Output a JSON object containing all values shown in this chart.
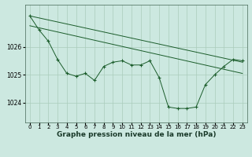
{
  "bg_color": "#cce8e0",
  "grid_color": "#aaccbb",
  "line_color": "#1a5c2a",
  "xlabel": "Graphe pression niveau de la mer (hPa)",
  "xlabel_fontsize": 6.5,
  "xtick_fontsize": 5.0,
  "ytick_fontsize": 5.5,
  "ylim": [
    1023.3,
    1027.5
  ],
  "xlim": [
    -0.5,
    23.5
  ],
  "yticks": [
    1024,
    1025,
    1026
  ],
  "xticks": [
    0,
    1,
    2,
    3,
    4,
    5,
    6,
    7,
    8,
    9,
    10,
    11,
    12,
    13,
    14,
    15,
    16,
    17,
    18,
    19,
    20,
    21,
    22,
    23
  ],
  "trend1_x": [
    0,
    23
  ],
  "trend1_y": [
    1027.1,
    1025.45
  ],
  "trend2_x": [
    0,
    23
  ],
  "trend2_y": [
    1026.75,
    1025.05
  ],
  "series_main": {
    "x": [
      0,
      1,
      2,
      3,
      4,
      5,
      6,
      7,
      8,
      9,
      10,
      11,
      12,
      13,
      14,
      15,
      16,
      17,
      18,
      19,
      20,
      21,
      22,
      23
    ],
    "y": [
      1027.1,
      1026.6,
      1026.2,
      1025.55,
      1025.05,
      1024.95,
      1025.05,
      1024.8,
      1025.3,
      1025.45,
      1025.5,
      1025.35,
      1025.35,
      1025.5,
      1024.9,
      1023.85,
      1023.8,
      1023.8,
      1023.85,
      1024.65,
      1025.0,
      1025.3,
      1025.55,
      1025.5
    ]
  }
}
